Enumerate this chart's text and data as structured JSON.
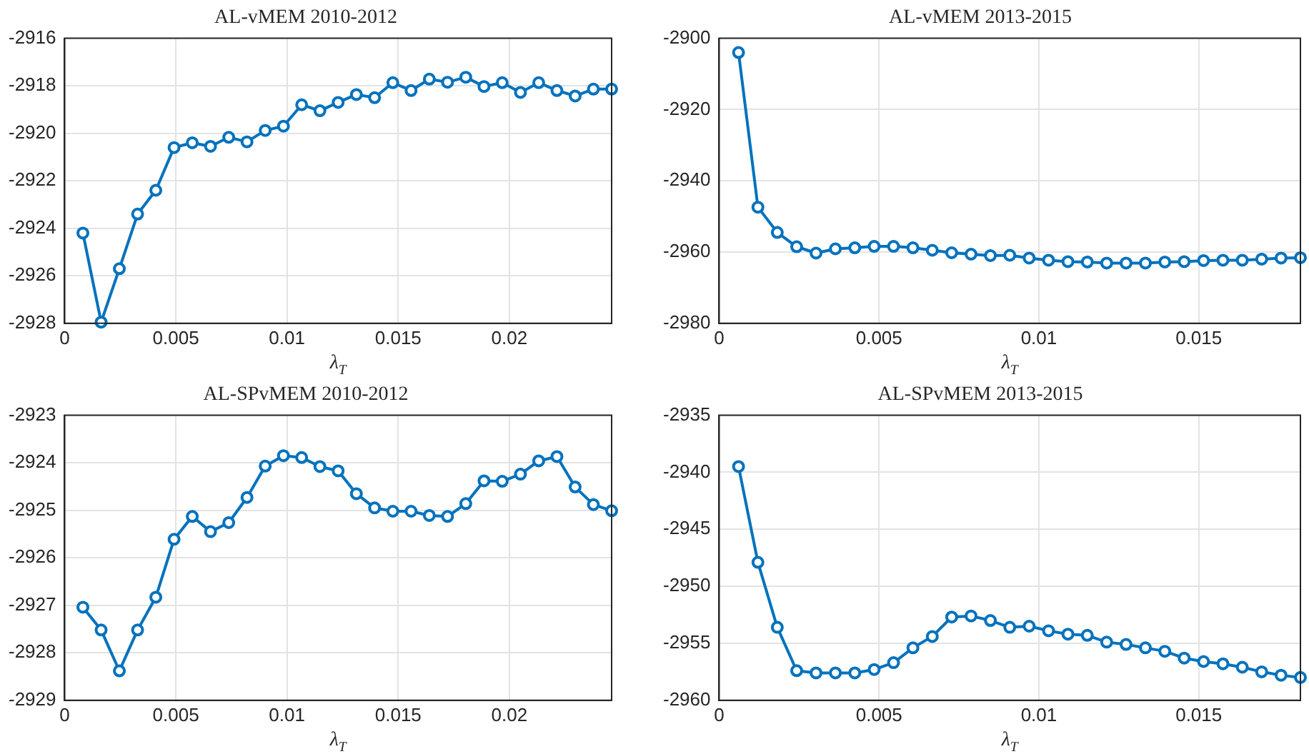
{
  "chart_data": [
    {
      "type": "line",
      "title": "AL-vMEM 2010-2012",
      "xlabel": "λ$_{T}$",
      "color": "#0072bd",
      "marker": "circle",
      "grid": true,
      "xlim": [
        0,
        0.0246
      ],
      "xticks": [
        0,
        0.005,
        0.01,
        0.015,
        0.02
      ],
      "ylim": [
        -2928,
        -2916
      ],
      "yticks": [
        -2928,
        -2926,
        -2924,
        -2922,
        -2920,
        -2918,
        -2916
      ],
      "x": [
        0.00082,
        0.00164,
        0.00246,
        0.00328,
        0.0041,
        0.00492,
        0.00574,
        0.00656,
        0.00738,
        0.0082,
        0.00902,
        0.00984,
        0.01066,
        0.01148,
        0.0123,
        0.01312,
        0.01394,
        0.01476,
        0.01558,
        0.0164,
        0.01722,
        0.01804,
        0.01886,
        0.01968,
        0.0205,
        0.02132,
        0.02214,
        0.02296,
        0.02378,
        0.0246
      ],
      "values": [
        -2924.2,
        -2927.95,
        -2925.7,
        -2923.4,
        -2922.4,
        -2920.6,
        -2920.4,
        -2920.55,
        -2920.17,
        -2920.36,
        -2919.88,
        -2919.7,
        -2918.8,
        -2919.05,
        -2918.7,
        -2918.37,
        -2918.5,
        -2917.87,
        -2918.2,
        -2917.72,
        -2917.85,
        -2917.64,
        -2918.03,
        -2917.87,
        -2918.28,
        -2917.87,
        -2918.2,
        -2918.43,
        -2918.14,
        -2918.14
      ]
    },
    {
      "type": "line",
      "title": "AL-vMEM 2013-2015",
      "xlabel": "λ$_{T}$",
      "color": "#0072bd",
      "marker": "circle",
      "grid": true,
      "xlim": [
        0,
        0.01818
      ],
      "xticks": [
        0,
        0.005,
        0.01,
        0.015
      ],
      "ylim": [
        -2980,
        -2900
      ],
      "yticks": [
        -2980,
        -2960,
        -2940,
        -2920,
        -2900
      ],
      "x": [
        0.000606,
        0.001212,
        0.001818,
        0.002424,
        0.00303,
        0.003636,
        0.004242,
        0.004848,
        0.005454,
        0.00606,
        0.006666,
        0.007272,
        0.007878,
        0.008484,
        0.00909,
        0.009696,
        0.010302,
        0.010908,
        0.011514,
        0.01212,
        0.012726,
        0.013332,
        0.013938,
        0.014544,
        0.01515,
        0.015756,
        0.016362,
        0.016968,
        0.017574,
        0.01818
      ],
      "values": [
        -2904,
        -2947.4,
        -2954.5,
        -2958.5,
        -2960.3,
        -2959.1,
        -2958.8,
        -2958.4,
        -2958.4,
        -2958.8,
        -2959.5,
        -2960.2,
        -2960.6,
        -2961,
        -2960.9,
        -2961.7,
        -2962.3,
        -2962.7,
        -2962.8,
        -2963.1,
        -2963.1,
        -2963.1,
        -2962.8,
        -2962.7,
        -2962.4,
        -2962.3,
        -2962.3,
        -2962,
        -2961.7,
        -2961.6
      ]
    },
    {
      "type": "line",
      "title": "AL-SPvMEM 2010-2012",
      "xlabel": "λ$_{T}$",
      "color": "#0072bd",
      "marker": "circle",
      "grid": true,
      "xlim": [
        0,
        0.0246
      ],
      "xticks": [
        0,
        0.005,
        0.01,
        0.015,
        0.02
      ],
      "ylim": [
        -2929,
        -2923
      ],
      "yticks": [
        -2929,
        -2928,
        -2927,
        -2926,
        -2925,
        -2924,
        -2923
      ],
      "x": [
        0.00082,
        0.00164,
        0.00246,
        0.00328,
        0.0041,
        0.00492,
        0.00574,
        0.00656,
        0.00738,
        0.0082,
        0.00902,
        0.00984,
        0.01066,
        0.01148,
        0.0123,
        0.01312,
        0.01394,
        0.01476,
        0.01558,
        0.0164,
        0.01722,
        0.01804,
        0.01886,
        0.01968,
        0.0205,
        0.02132,
        0.02214,
        0.02296,
        0.02378,
        0.0246
      ],
      "values": [
        -2927.04,
        -2927.52,
        -2928.38,
        -2927.52,
        -2926.83,
        -2925.61,
        -2925.13,
        -2925.45,
        -2925.26,
        -2924.73,
        -2924.07,
        -2923.85,
        -2923.89,
        -2924.08,
        -2924.17,
        -2924.65,
        -2924.95,
        -2925.02,
        -2925.02,
        -2925.11,
        -2925.13,
        -2924.86,
        -2924.38,
        -2924.39,
        -2924.24,
        -2923.96,
        -2923.87,
        -2924.51,
        -2924.88,
        -2925.01
      ]
    },
    {
      "type": "line",
      "title": "AL-SPvMEM 2013-2015",
      "xlabel": "λ$_{T}$",
      "color": "#0072bd",
      "marker": "circle",
      "grid": true,
      "xlim": [
        0,
        0.01818
      ],
      "xticks": [
        0,
        0.005,
        0.01,
        0.015
      ],
      "ylim": [
        -2960,
        -2935
      ],
      "yticks": [
        -2960,
        -2955,
        -2950,
        -2945,
        -2940,
        -2935
      ],
      "x": [
        0.000606,
        0.001212,
        0.001818,
        0.002424,
        0.00303,
        0.003636,
        0.004242,
        0.004848,
        0.005454,
        0.00606,
        0.006666,
        0.007272,
        0.007878,
        0.008484,
        0.00909,
        0.009696,
        0.010302,
        0.010908,
        0.011514,
        0.01212,
        0.012726,
        0.013332,
        0.013938,
        0.014544,
        0.01515,
        0.015756,
        0.016362,
        0.016968,
        0.017574,
        0.01818
      ],
      "values": [
        -2939.5,
        -2947.9,
        -2953.6,
        -2957.4,
        -2957.6,
        -2957.6,
        -2957.6,
        -2957.3,
        -2956.7,
        -2955.4,
        -2954.4,
        -2952.7,
        -2952.6,
        -2953,
        -2953.6,
        -2953.5,
        -2953.9,
        -2954.2,
        -2954.3,
        -2954.9,
        -2955.1,
        -2955.4,
        -2955.7,
        -2956.3,
        -2956.6,
        -2956.8,
        -2957.1,
        -2957.5,
        -2957.8,
        -2958
      ]
    }
  ]
}
